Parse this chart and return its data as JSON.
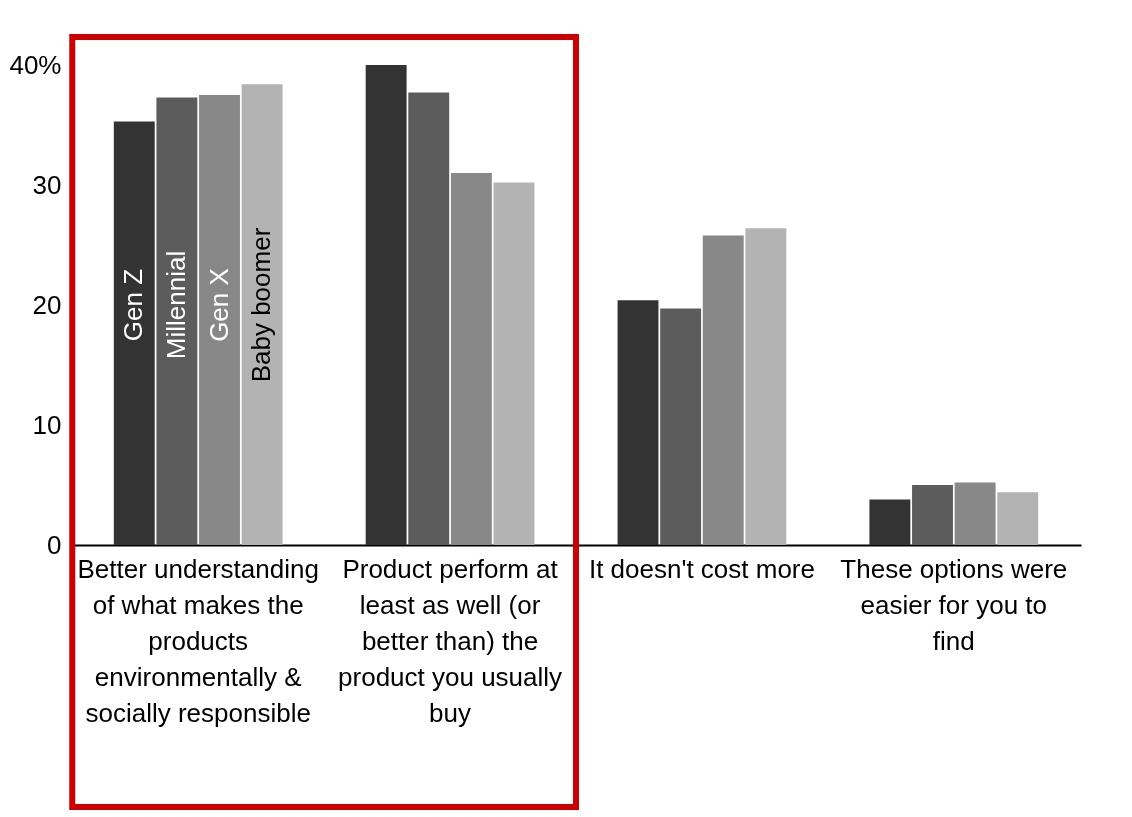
{
  "chart_data": {
    "type": "bar",
    "categories": [
      "Better understanding of what makes the products environmentally & socially responsible",
      "Product perform at least as well (or better than) the product you usually buy",
      "It doesn't cost more",
      "These options were easier for you to find"
    ],
    "series": [
      {
        "name": "Gen Z",
        "color": "#333333",
        "values": [
          35.3,
          40.0,
          20.4,
          3.8
        ]
      },
      {
        "name": "Millennial",
        "color": "#5c5c5c",
        "values": [
          37.3,
          37.7,
          19.7,
          5.0
        ]
      },
      {
        "name": "Gen X",
        "color": "#888888",
        "values": [
          37.5,
          31.0,
          25.8,
          5.2
        ]
      },
      {
        "name": "Baby boomer",
        "color": "#b3b3b3",
        "values": [
          38.4,
          30.2,
          26.4,
          4.4
        ]
      }
    ],
    "ylim": [
      0,
      40
    ],
    "yticks": [
      0,
      10,
      20,
      30,
      {
        "value": 40,
        "label": "40%"
      }
    ],
    "grid": false
  }
}
